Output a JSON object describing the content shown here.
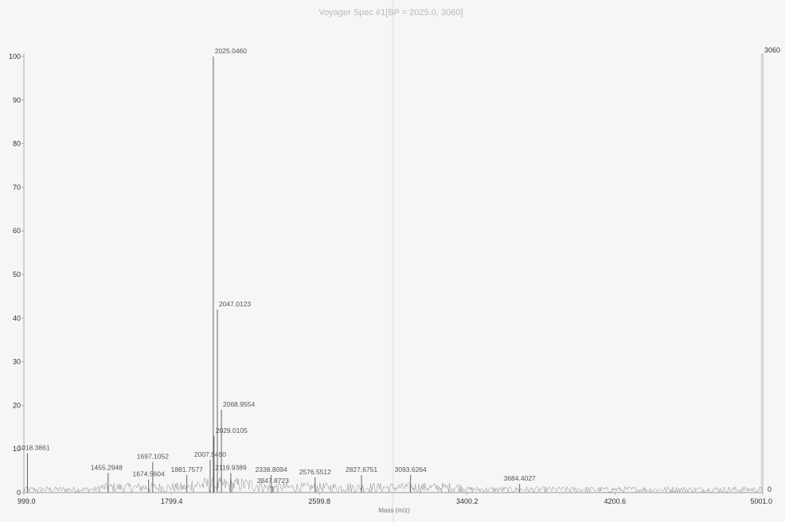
{
  "chart_data": {
    "type": "line",
    "title": "Voyager Spec #1[BP = 2025.0, 3060]",
    "xlabel": "Mass (m/z)",
    "ylabel": "",
    "xlim": [
      999.0,
      5001.0
    ],
    "ylim": [
      0,
      100
    ],
    "x_ticks": [
      "999.0",
      "1799.4",
      "2599.8",
      "3400.2",
      "4200.6",
      "5001.0"
    ],
    "y_ticks": [
      "0",
      "10",
      "20",
      "30",
      "40",
      "50",
      "60",
      "70",
      "80",
      "90",
      "100"
    ],
    "right_axis_ticks": {
      "top": "3060",
      "bottom": "0"
    },
    "grid": false,
    "peaks": [
      {
        "x": 1018.3861,
        "y": 9.0,
        "label": "1018.3861"
      },
      {
        "x": 1455.2948,
        "y": 4.5,
        "label": "1455.2948"
      },
      {
        "x": 1674.5604,
        "y": 3.0,
        "label": "1674.5604"
      },
      {
        "x": 1697.1052,
        "y": 7.0,
        "label": "1697.1052"
      },
      {
        "x": 1881.7577,
        "y": 4.0,
        "label": "1881.7577"
      },
      {
        "x": 2007.949,
        "y": 7.5,
        "label": "2007.9490"
      },
      {
        "x": 2025.046,
        "y": 100.0,
        "label": "2025.0460"
      },
      {
        "x": 2029.0105,
        "y": 13.0,
        "label": "2029.0105"
      },
      {
        "x": 2047.0123,
        "y": 42.0,
        "label": "2047.0123"
      },
      {
        "x": 2068.9554,
        "y": 19.0,
        "label": "2068.9554"
      },
      {
        "x": 2119.9389,
        "y": 4.5,
        "label": "2119.9389"
      },
      {
        "x": 2338.8094,
        "y": 4.0,
        "label": "2338.8094"
      },
      {
        "x": 2347.8723,
        "y": 1.5,
        "label": "2347.8723"
      },
      {
        "x": 2576.5512,
        "y": 3.5,
        "label": "2576.5512"
      },
      {
        "x": 2827.6751,
        "y": 4.0,
        "label": "2827.6751"
      },
      {
        "x": 3093.6264,
        "y": 4.0,
        "label": "3093.6264"
      },
      {
        "x": 3684.4027,
        "y": 2.0,
        "label": "3684.4027"
      }
    ]
  }
}
